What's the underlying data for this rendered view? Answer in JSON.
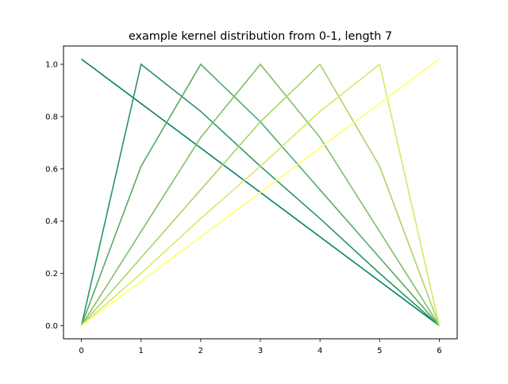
{
  "chart_data": {
    "type": "line",
    "title": "example kernel distribution from 0-1, length 7",
    "xlabel": "",
    "ylabel": "",
    "x": [
      0,
      1,
      2,
      3,
      4,
      5,
      6
    ],
    "xlim": [
      -0.3,
      6.3
    ],
    "ylim": [
      -0.05,
      1.07
    ],
    "xticks": [
      0,
      1,
      2,
      3,
      4,
      5,
      6
    ],
    "xtick_labels": [
      "0",
      "1",
      "2",
      "3",
      "4",
      "5",
      "6"
    ],
    "yticks": [
      0.0,
      0.2,
      0.4,
      0.6,
      0.8,
      1.0
    ],
    "ytick_labels": [
      "0.0",
      "0.2",
      "0.4",
      "0.6",
      "0.8",
      "1.0"
    ],
    "grid": false,
    "legend": "none",
    "colormap": "summer",
    "series": [
      {
        "color": "#008066",
        "values": [
          1.02,
          0.85,
          0.68,
          0.51,
          0.34,
          0.17,
          0.0
        ]
      },
      {
        "color": "#2a9466",
        "values": [
          0.0,
          1.0,
          0.82,
          0.61,
          0.41,
          0.2,
          0.0
        ]
      },
      {
        "color": "#55aa66",
        "values": [
          0.0,
          0.61,
          1.0,
          0.78,
          0.52,
          0.26,
          0.0
        ]
      },
      {
        "color": "#80bf66",
        "values": [
          0.0,
          0.36,
          0.72,
          1.0,
          0.72,
          0.36,
          0.0
        ]
      },
      {
        "color": "#aad466",
        "values": [
          0.0,
          0.26,
          0.52,
          0.78,
          1.0,
          0.61,
          0.0
        ]
      },
      {
        "color": "#d4e966",
        "values": [
          0.0,
          0.2,
          0.41,
          0.61,
          0.82,
          1.0,
          0.0
        ]
      },
      {
        "color": "#ffff66",
        "values": [
          0.0,
          0.17,
          0.34,
          0.51,
          0.68,
          0.85,
          1.02
        ]
      }
    ]
  }
}
